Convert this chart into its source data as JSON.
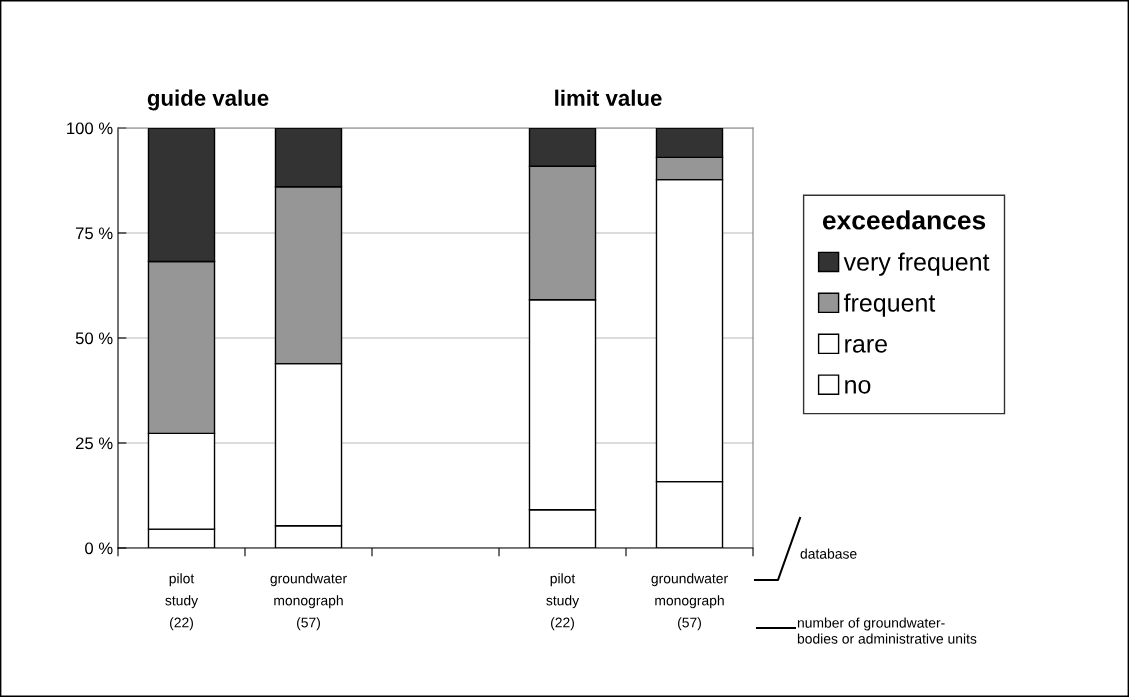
{
  "chart_data": {
    "type": "bar",
    "stacked": true,
    "categories": [
      "pilot\nstudy\n(22)",
      "groundwater\nmonograph\n(57)",
      null,
      "pilot\nstudy\n(22)",
      "groundwater\nmonograph\n(57)"
    ],
    "series": [
      {
        "name": "no",
        "color": "#ffffff",
        "values": [
          4.5,
          5.3,
          null,
          9.1,
          15.8
        ]
      },
      {
        "name": "rare",
        "color": "#ffffff",
        "values": [
          22.8,
          38.6,
          null,
          50.0,
          71.9
        ]
      },
      {
        "name": "frequent",
        "color": "#969696",
        "values": [
          40.9,
          42.1,
          null,
          31.8,
          5.3
        ]
      },
      {
        "name": "very frequent",
        "color": "#333333",
        "values": [
          31.8,
          14.0,
          null,
          9.1,
          7.0
        ]
      }
    ],
    "ylim": [
      0,
      100
    ],
    "yticks": [
      {
        "value": 0,
        "label": "0 %"
      },
      {
        "value": 25,
        "label": "25 %"
      },
      {
        "value": 50,
        "label": "50 %"
      },
      {
        "value": 75,
        "label": "75 %"
      },
      {
        "value": 100,
        "label": "100 %"
      }
    ],
    "grid": "y",
    "legend": "right",
    "legend_title": "exceedances",
    "annotations": [
      "guide value",
      "limit value",
      "database",
      "number of groundwater-\nbodies or administrative units"
    ]
  }
}
